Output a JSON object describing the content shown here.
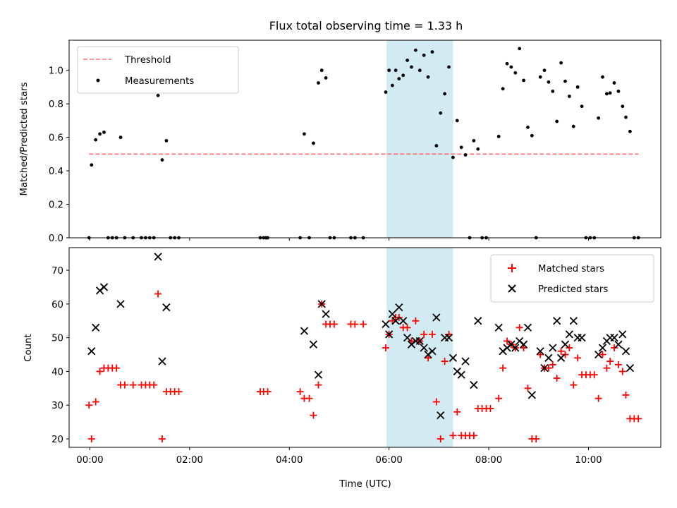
{
  "chart_data": {
    "title": "Flux total observing time = 1.33 h",
    "xlabel": "Time (UTC)",
    "x_ticks": [
      "00:00",
      "02:00",
      "04:00",
      "06:00",
      "08:00",
      "10:00"
    ],
    "xlim": [
      "23:35",
      "11:27"
    ],
    "highlight_band": {
      "start": "05:57",
      "end": "07:17",
      "color": "#add8e6"
    },
    "top": {
      "type": "scatter",
      "ylabel": "Matched/Predicted stars",
      "ylim": [
        0,
        1.18
      ],
      "y_ticks": [
        "0.0",
        "0.2",
        "0.4",
        "0.6",
        "0.8",
        "1.0"
      ],
      "threshold": {
        "name": "Threshold",
        "value": 0.5,
        "color": "#ff7070",
        "style": "dashed"
      },
      "legend": {
        "placement": "upper left",
        "entries": [
          "Threshold",
          "Measurements"
        ]
      },
      "series": [
        {
          "name": "Measurements",
          "color": "#000000",
          "points": [
            [
              "23:59",
              0
            ],
            [
              "00:02",
              0.435
            ],
            [
              "00:07",
              0.585
            ],
            [
              "00:12",
              0.62
            ],
            [
              "00:17",
              0.63
            ],
            [
              "00:22",
              0
            ],
            [
              "00:27",
              0
            ],
            [
              "00:32",
              0
            ],
            [
              "00:37",
              0.6
            ],
            [
              "00:42",
              0
            ],
            [
              "00:52",
              0
            ],
            [
              "01:02",
              0
            ],
            [
              "01:07",
              0
            ],
            [
              "01:12",
              0
            ],
            [
              "01:17",
              0
            ],
            [
              "01:22",
              0.85
            ],
            [
              "01:27",
              0.465
            ],
            [
              "01:32",
              0.58
            ],
            [
              "01:37",
              0
            ],
            [
              "01:42",
              0
            ],
            [
              "01:47",
              0
            ],
            [
              "03:25",
              0
            ],
            [
              "03:29",
              0
            ],
            [
              "03:32",
              0
            ],
            [
              "03:34",
              0
            ],
            [
              "04:13",
              0
            ],
            [
              "04:18",
              0.62
            ],
            [
              "04:24",
              0
            ],
            [
              "04:29",
              0.565
            ],
            [
              "04:35",
              0.925
            ],
            [
              "04:39",
              1.0
            ],
            [
              "04:44",
              0.955
            ],
            [
              "04:49",
              0
            ],
            [
              "04:54",
              0
            ],
            [
              "05:14",
              0
            ],
            [
              "05:19",
              0
            ],
            [
              "05:29",
              0
            ],
            [
              "05:56",
              0.87
            ],
            [
              "06:00",
              1.0
            ],
            [
              "06:04",
              0.91
            ],
            [
              "06:08",
              1.0
            ],
            [
              "06:12",
              0.95
            ],
            [
              "06:17",
              0.97
            ],
            [
              "06:22",
              1.06
            ],
            [
              "06:27",
              1.02
            ],
            [
              "06:32",
              1.12
            ],
            [
              "06:37",
              1.0
            ],
            [
              "06:42",
              1.09
            ],
            [
              "06:47",
              0.96
            ],
            [
              "06:52",
              1.11
            ],
            [
              "06:57",
              0.55
            ],
            [
              "07:02",
              0.745
            ],
            [
              "07:07",
              0.86
            ],
            [
              "07:12",
              1.02
            ],
            [
              "07:17",
              0.48
            ],
            [
              "07:22",
              0.7
            ],
            [
              "07:27",
              0.54
            ],
            [
              "07:32",
              0.495
            ],
            [
              "07:37",
              0
            ],
            [
              "07:42",
              0.58
            ],
            [
              "07:47",
              0.53
            ],
            [
              "07:52",
              0
            ],
            [
              "07:57",
              0
            ],
            [
              "08:12",
              0.605
            ],
            [
              "08:17",
              0.89
            ],
            [
              "08:22",
              1.04
            ],
            [
              "08:27",
              1.02
            ],
            [
              "08:32",
              0.985
            ],
            [
              "08:37",
              1.13
            ],
            [
              "08:42",
              0.94
            ],
            [
              "08:47",
              0.66
            ],
            [
              "08:52",
              0.61
            ],
            [
              "08:57",
              0
            ],
            [
              "09:02",
              0.96
            ],
            [
              "09:07",
              1.0
            ],
            [
              "09:12",
              0.93
            ],
            [
              "09:17",
              0.875
            ],
            [
              "09:22",
              0.695
            ],
            [
              "09:27",
              1.045
            ],
            [
              "09:32",
              0.935
            ],
            [
              "09:37",
              0.845
            ],
            [
              "09:42",
              0.665
            ],
            [
              "09:47",
              0.9
            ],
            [
              "09:52",
              0.785
            ],
            [
              "09:57",
              0
            ],
            [
              "10:02",
              0
            ],
            [
              "10:07",
              0
            ],
            [
              "10:12",
              0.715
            ],
            [
              "10:17",
              0.96
            ],
            [
              "10:22",
              0.86
            ],
            [
              "10:26",
              0.865
            ],
            [
              "10:31",
              0.925
            ],
            [
              "10:36",
              0.875
            ],
            [
              "10:41",
              0.785
            ],
            [
              "10:45",
              0.72
            ],
            [
              "10:50",
              0.635
            ],
            [
              "10:55",
              0
            ],
            [
              "11:00",
              0
            ]
          ]
        }
      ]
    },
    "bottom": {
      "type": "scatter",
      "ylabel": "Count",
      "ylim": [
        17.5,
        76.7
      ],
      "y_ticks": [
        "20",
        "30",
        "40",
        "50",
        "60",
        "70"
      ],
      "legend": {
        "placement": "upper right",
        "entries": [
          "Matched stars",
          "Predicted stars"
        ]
      },
      "series": [
        {
          "name": "Matched stars",
          "marker": "plus",
          "color": "#ff0000",
          "points": [
            [
              "23:59",
              30
            ],
            [
              "00:02",
              20
            ],
            [
              "00:07",
              31
            ],
            [
              "00:12",
              40
            ],
            [
              "00:17",
              41
            ],
            [
              "00:22",
              41
            ],
            [
              "00:27",
              41
            ],
            [
              "00:32",
              41
            ],
            [
              "00:37",
              36
            ],
            [
              "00:42",
              36
            ],
            [
              "00:52",
              36
            ],
            [
              "01:02",
              36
            ],
            [
              "01:07",
              36
            ],
            [
              "01:12",
              36
            ],
            [
              "01:17",
              36
            ],
            [
              "01:22",
              63
            ],
            [
              "01:27",
              20
            ],
            [
              "01:32",
              34
            ],
            [
              "01:37",
              34
            ],
            [
              "01:42",
              34
            ],
            [
              "01:47",
              34
            ],
            [
              "03:25",
              34
            ],
            [
              "03:29",
              34
            ],
            [
              "03:34",
              34
            ],
            [
              "04:13",
              34
            ],
            [
              "04:18",
              32
            ],
            [
              "04:24",
              32
            ],
            [
              "04:29",
              27
            ],
            [
              "04:35",
              36
            ],
            [
              "04:39",
              60
            ],
            [
              "04:44",
              54
            ],
            [
              "04:49",
              54
            ],
            [
              "04:54",
              54
            ],
            [
              "05:14",
              54
            ],
            [
              "05:19",
              54
            ],
            [
              "05:29",
              54
            ],
            [
              "05:56",
              47
            ],
            [
              "06:00",
              51
            ],
            [
              "06:04",
              55
            ],
            [
              "06:08",
              56
            ],
            [
              "06:12",
              56
            ],
            [
              "06:17",
              53
            ],
            [
              "06:22",
              53
            ],
            [
              "06:27",
              49
            ],
            [
              "06:32",
              55
            ],
            [
              "06:37",
              49
            ],
            [
              "06:42",
              51
            ],
            [
              "06:47",
              44
            ],
            [
              "06:52",
              51
            ],
            [
              "06:57",
              31
            ],
            [
              "07:02",
              20
            ],
            [
              "07:07",
              43
            ],
            [
              "07:12",
              51
            ],
            [
              "07:17",
              21
            ],
            [
              "07:22",
              28
            ],
            [
              "07:27",
              21
            ],
            [
              "07:32",
              21
            ],
            [
              "07:37",
              21
            ],
            [
              "07:42",
              21
            ],
            [
              "07:47",
              29
            ],
            [
              "07:52",
              29
            ],
            [
              "07:57",
              29
            ],
            [
              "08:02",
              29
            ],
            [
              "08:12",
              32
            ],
            [
              "08:17",
              41
            ],
            [
              "08:22",
              49
            ],
            [
              "08:27",
              48
            ],
            [
              "08:32",
              47
            ],
            [
              "08:37",
              53
            ],
            [
              "08:42",
              47
            ],
            [
              "08:47",
              35
            ],
            [
              "08:52",
              20
            ],
            [
              "08:57",
              20
            ],
            [
              "09:02",
              45
            ],
            [
              "09:07",
              41
            ],
            [
              "09:12",
              41
            ],
            [
              "09:17",
              42
            ],
            [
              "09:22",
              38
            ],
            [
              "09:27",
              46
            ],
            [
              "09:32",
              45
            ],
            [
              "09:37",
              47
            ],
            [
              "09:42",
              36
            ],
            [
              "09:47",
              44
            ],
            [
              "09:52",
              39
            ],
            [
              "09:57",
              39
            ],
            [
              "10:02",
              39
            ],
            [
              "10:07",
              39
            ],
            [
              "10:12",
              32
            ],
            [
              "10:17",
              45
            ],
            [
              "10:22",
              41
            ],
            [
              "10:26",
              43
            ],
            [
              "10:31",
              47
            ],
            [
              "10:36",
              42
            ],
            [
              "10:41",
              40
            ],
            [
              "10:45",
              33
            ],
            [
              "10:50",
              26
            ],
            [
              "10:55",
              26
            ],
            [
              "11:00",
              26
            ]
          ]
        },
        {
          "name": "Predicted stars",
          "marker": "x",
          "color": "#000000",
          "points": [
            [
              "00:02",
              46
            ],
            [
              "00:07",
              53
            ],
            [
              "00:12",
              64
            ],
            [
              "00:17",
              65
            ],
            [
              "00:37",
              60
            ],
            [
              "01:22",
              74
            ],
            [
              "01:27",
              43
            ],
            [
              "01:32",
              59
            ],
            [
              "04:18",
              52
            ],
            [
              "04:29",
              48
            ],
            [
              "04:35",
              39
            ],
            [
              "04:39",
              60
            ],
            [
              "04:44",
              57
            ],
            [
              "05:56",
              54
            ],
            [
              "06:00",
              51
            ],
            [
              "06:04",
              57
            ],
            [
              "06:08",
              55
            ],
            [
              "06:12",
              59
            ],
            [
              "06:17",
              55
            ],
            [
              "06:22",
              50
            ],
            [
              "06:27",
              48
            ],
            [
              "06:32",
              49
            ],
            [
              "06:37",
              49
            ],
            [
              "06:42",
              47
            ],
            [
              "06:47",
              45
            ],
            [
              "06:52",
              46
            ],
            [
              "06:57",
              56
            ],
            [
              "07:02",
              27
            ],
            [
              "07:07",
              50
            ],
            [
              "07:12",
              50
            ],
            [
              "07:17",
              44
            ],
            [
              "07:22",
              40
            ],
            [
              "07:27",
              39
            ],
            [
              "07:32",
              43
            ],
            [
              "07:42",
              36
            ],
            [
              "07:47",
              55
            ],
            [
              "08:12",
              53
            ],
            [
              "08:17",
              46
            ],
            [
              "08:22",
              47
            ],
            [
              "08:27",
              48
            ],
            [
              "08:32",
              47
            ],
            [
              "08:37",
              49
            ],
            [
              "08:42",
              48
            ],
            [
              "08:47",
              53
            ],
            [
              "08:52",
              33
            ],
            [
              "09:02",
              46
            ],
            [
              "09:07",
              41
            ],
            [
              "09:12",
              44
            ],
            [
              "09:17",
              47
            ],
            [
              "09:22",
              55
            ],
            [
              "09:27",
              44
            ],
            [
              "09:32",
              48
            ],
            [
              "09:37",
              51
            ],
            [
              "09:42",
              55
            ],
            [
              "09:47",
              50
            ],
            [
              "09:52",
              50
            ],
            [
              "10:12",
              45
            ],
            [
              "10:17",
              47
            ],
            [
              "10:22",
              49
            ],
            [
              "10:26",
              50
            ],
            [
              "10:31",
              50
            ],
            [
              "10:36",
              48
            ],
            [
              "10:41",
              51
            ],
            [
              "10:45",
              46
            ],
            [
              "10:50",
              41
            ]
          ]
        }
      ]
    }
  }
}
